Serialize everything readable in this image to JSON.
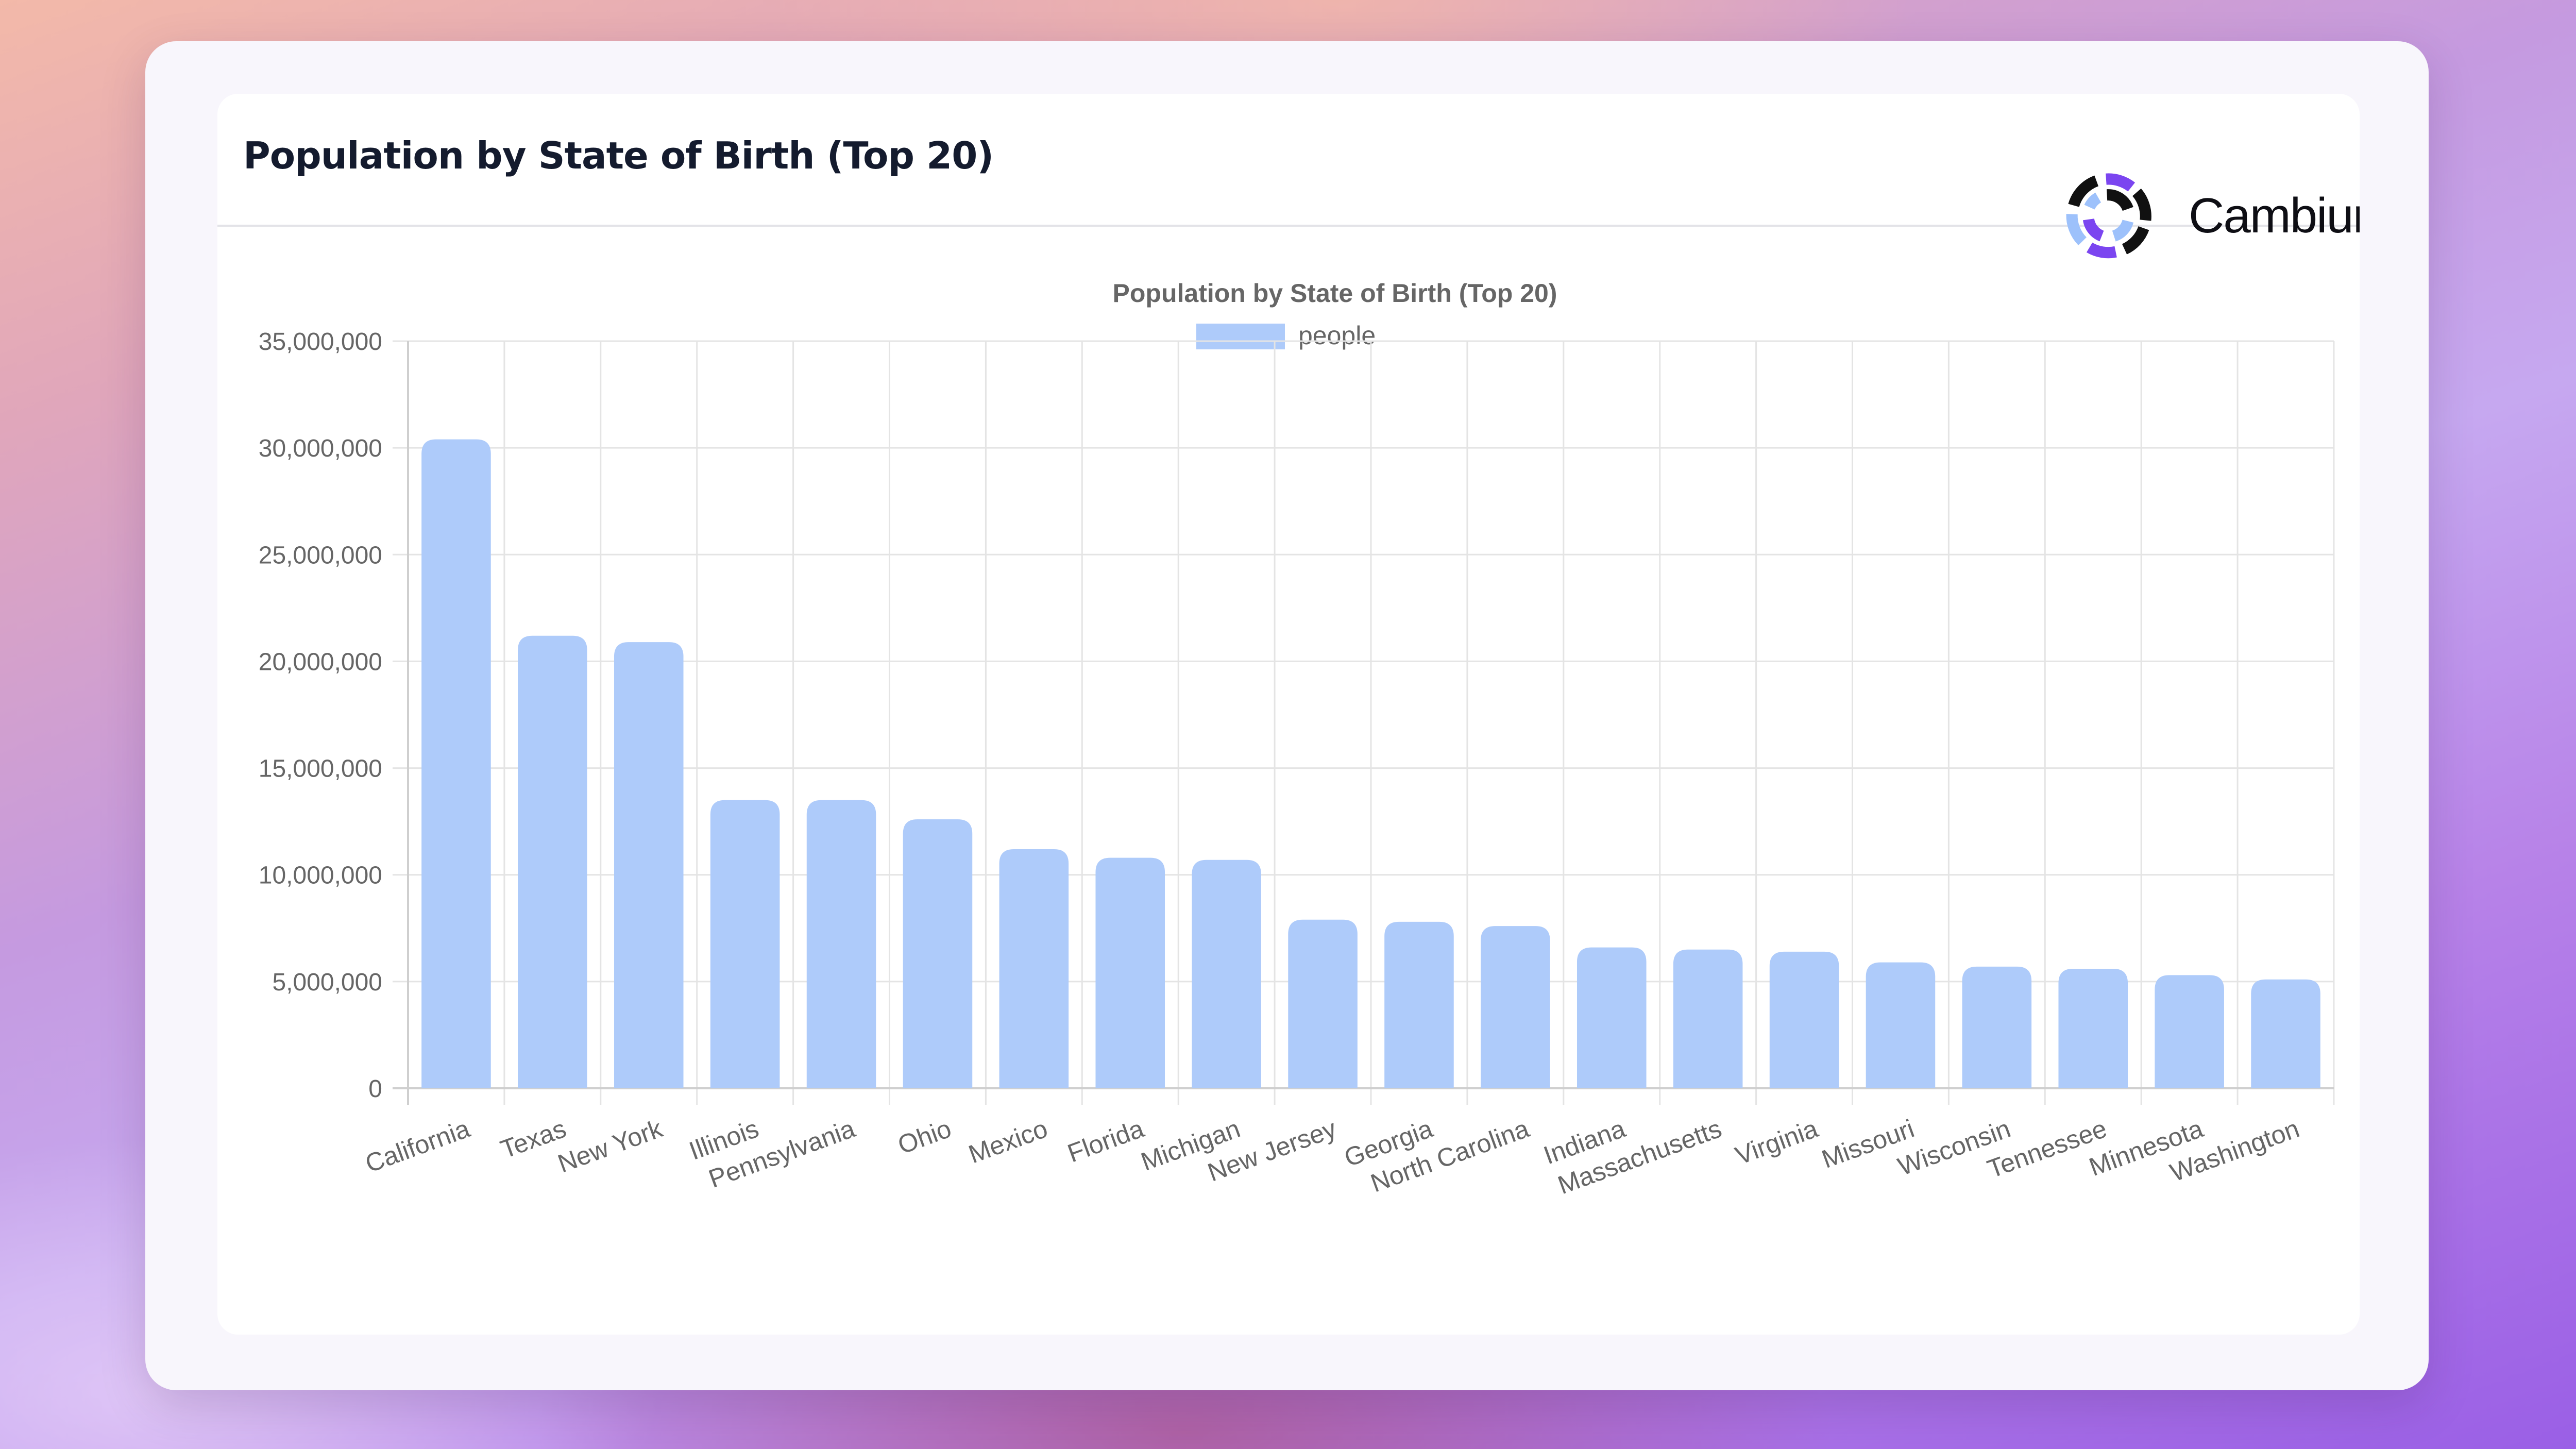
{
  "card": {
    "title": "Population by State of Birth (Top 20)"
  },
  "brand": {
    "name": "Cambium.AI",
    "icon": "cambium-logo-icon"
  },
  "colors": {
    "bar": "#aecbfa",
    "grid": "#e4e4e4",
    "text": "#666666"
  },
  "chart_data": {
    "type": "bar",
    "title": "Population by State of Birth (Top 20)",
    "xlabel": "",
    "ylabel": "",
    "legend_position": "top-center",
    "grid": true,
    "ylim": [
      0,
      35000000
    ],
    "yticks": [
      "0",
      "5,000,000",
      "10,000,000",
      "15,000,000",
      "20,000,000",
      "25,000,000",
      "30,000,000",
      "35,000,000"
    ],
    "categories": [
      "California",
      "Texas",
      "New York",
      "Illinois",
      "Pennsylvania",
      "Ohio",
      "Mexico",
      "Florida",
      "Michigan",
      "New Jersey",
      "Georgia",
      "North Carolina",
      "Indiana",
      "Massachusetts",
      "Virginia",
      "Missouri",
      "Wisconsin",
      "Tennessee",
      "Minnesota",
      "Washington"
    ],
    "series": [
      {
        "name": "people",
        "values": [
          30400000,
          21200000,
          20900000,
          13500000,
          13500000,
          12600000,
          11200000,
          10800000,
          10700000,
          7900000,
          7800000,
          7600000,
          6600000,
          6500000,
          6400000,
          5900000,
          5700000,
          5600000,
          5300000,
          5100000
        ]
      }
    ]
  }
}
